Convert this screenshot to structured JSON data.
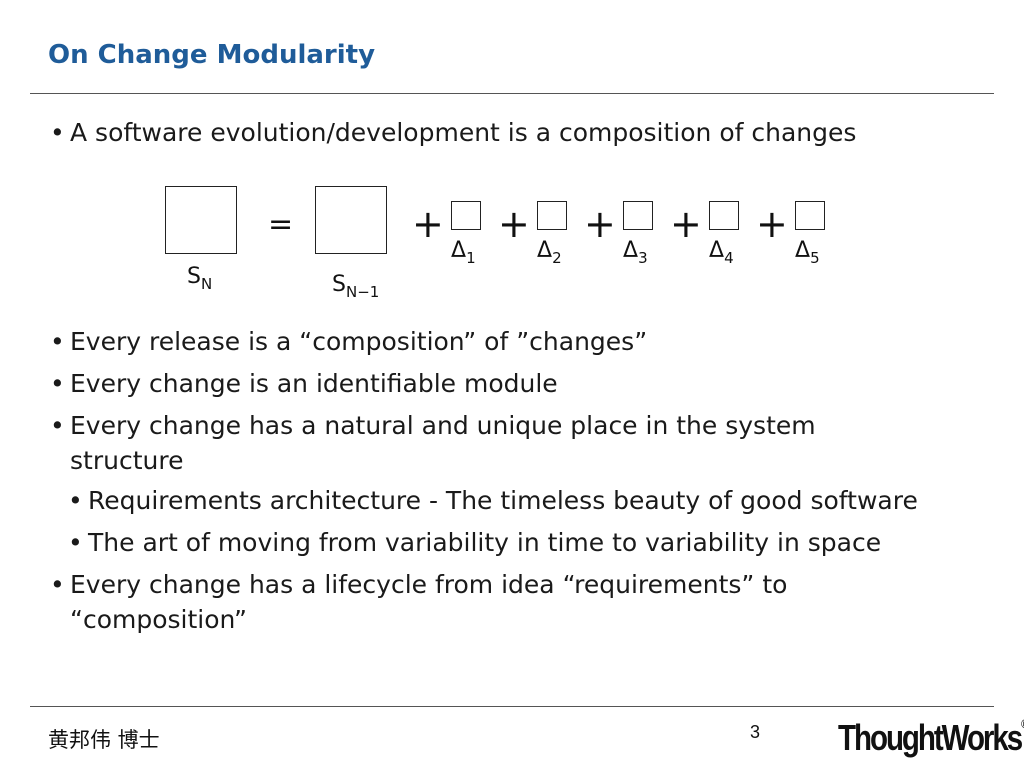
{
  "slide": {
    "title": "On Change Modularity",
    "bullets": [
      "A software evolution/development is a composition of changes",
      "Every release is a “composition” of ”changes”",
      "Every change is an identifiable module",
      "Every change has a natural and unique place in the system structure",
      "Every change has a lifecycle from idea “requirements” to “composition”"
    ],
    "sub_bullets": [
      "Requirements architecture - The timeless beauty of good software",
      "The art of moving from variability in time to variability in space"
    ],
    "bullet_symbol": "•"
  },
  "diagram": {
    "equals": "=",
    "plus": "+",
    "lhs_label": {
      "base": "S",
      "sub": "N"
    },
    "rhs_label": {
      "base": "S",
      "sub": "N−1"
    },
    "delta_symbol": "Δ",
    "delta_subs": [
      "1",
      "2",
      "3",
      "4",
      "5"
    ]
  },
  "footer": {
    "author": "黄邦伟 博士",
    "page_number": "3",
    "logo_text": "ThoughtWorks",
    "logo_mark": "®"
  }
}
